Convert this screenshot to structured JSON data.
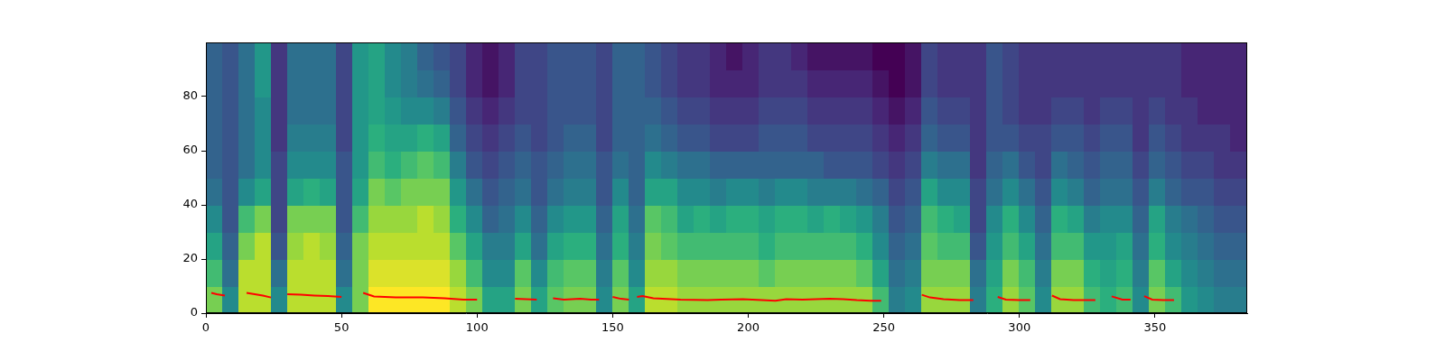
{
  "chart_data": {
    "type": "heatmap",
    "xlim": [
      0,
      384
    ],
    "ylim": [
      0,
      100
    ],
    "xticks": [
      0,
      50,
      100,
      150,
      200,
      250,
      300,
      350
    ],
    "yticks": [
      0,
      20,
      40,
      60,
      80
    ],
    "grid": false,
    "heatmap": {
      "x_edges": [
        0,
        6,
        12,
        18,
        24,
        30,
        36,
        42,
        48,
        54,
        60,
        66,
        72,
        78,
        84,
        90,
        96,
        102,
        108,
        114,
        120,
        126,
        132,
        138,
        144,
        150,
        156,
        162,
        168,
        174,
        180,
        186,
        192,
        198,
        204,
        210,
        216,
        222,
        228,
        234,
        240,
        246,
        252,
        258,
        264,
        270,
        276,
        282,
        288,
        294,
        300,
        306,
        312,
        318,
        324,
        330,
        336,
        342,
        348,
        354,
        360,
        366,
        372,
        378,
        384
      ],
      "y_edges": [
        0,
        10,
        20,
        30,
        40,
        50,
        60,
        70,
        80,
        90,
        100
      ],
      "cells": [
        [
          8,
          7,
          6,
          5,
          4,
          3.5,
          3.5,
          3.5,
          3.5,
          3.5
        ],
        [
          5,
          4,
          3.5,
          3,
          3,
          3,
          3,
          3,
          3,
          3
        ],
        [
          9,
          9,
          8,
          7,
          5,
          4,
          4,
          4,
          4,
          4
        ],
        [
          9,
          9,
          9,
          8,
          6,
          5,
          5,
          5,
          5.5,
          5.5
        ],
        [
          5,
          4,
          3,
          2.5,
          2.5,
          2.5,
          2,
          2,
          2,
          2
        ],
        [
          9,
          9,
          8.5,
          8,
          6,
          5,
          4.5,
          4,
          4,
          4
        ],
        [
          9,
          9,
          9,
          8,
          6.5,
          5,
          4.5,
          4,
          4,
          4
        ],
        [
          9,
          9,
          8.5,
          8,
          6,
          5,
          4.5,
          4,
          4,
          4
        ],
        [
          5,
          4,
          3.5,
          3,
          3,
          3,
          2.5,
          2.5,
          2.5,
          2.5
        ],
        [
          8,
          8,
          8,
          7,
          6,
          5.5,
          5.5,
          5.5,
          5.5,
          5.5
        ],
        [
          10,
          9.5,
          9,
          8.5,
          8,
          7,
          6.5,
          6,
          6,
          6
        ],
        [
          10,
          9.5,
          9,
          8.5,
          7.5,
          6.5,
          6,
          5.5,
          5,
          5
        ],
        [
          10,
          9.5,
          9,
          8.5,
          8,
          7,
          6,
          5,
          4.5,
          4.5
        ],
        [
          10,
          9.5,
          9,
          9,
          8,
          7.5,
          6.5,
          5,
          4,
          3.5
        ],
        [
          10,
          9.5,
          9,
          8.5,
          8,
          7,
          6,
          4.5,
          3.5,
          3
        ],
        [
          9,
          8.5,
          7.5,
          6.5,
          5.5,
          4.5,
          3.5,
          3,
          2.5,
          2.5
        ],
        [
          8,
          7,
          6,
          5,
          4,
          3,
          2.5,
          2,
          1.5,
          1.5
        ],
        [
          6,
          5,
          4.5,
          3.5,
          3,
          2.5,
          2,
          1.5,
          1,
          1
        ],
        [
          6,
          5,
          4.5,
          4,
          3.5,
          3,
          2.5,
          2,
          1.5,
          1.5
        ],
        [
          8,
          7.5,
          6,
          5,
          4,
          3.5,
          3,
          2.5,
          2.5,
          2.5
        ],
        [
          6,
          5,
          4,
          3.5,
          3,
          3,
          2.5,
          2.5,
          2.5,
          2.5
        ],
        [
          7.5,
          7,
          6,
          5,
          4,
          3.5,
          3,
          3,
          3,
          3
        ],
        [
          8,
          7.5,
          6.5,
          5.5,
          4.5,
          4,
          3.5,
          3,
          3,
          3
        ],
        [
          8,
          7.5,
          6.5,
          5.5,
          4.5,
          4,
          3.5,
          3,
          3,
          3
        ],
        [
          5,
          4.5,
          4,
          3.5,
          3,
          3,
          2.5,
          2.5,
          2.5,
          2.5
        ],
        [
          8,
          7.5,
          6.5,
          6,
          5,
          4,
          3.5,
          3.5,
          3.5,
          3.5
        ],
        [
          6,
          5,
          4.5,
          4,
          3.5,
          3.5,
          3.5,
          3.5,
          3.5,
          3.5
        ],
        [
          9,
          8.5,
          8,
          7.5,
          6,
          5,
          4,
          3.5,
          3,
          3
        ],
        [
          9,
          8.5,
          7.5,
          7,
          6,
          4.5,
          3.5,
          3,
          2.5,
          2.5
        ],
        [
          8.5,
          8,
          7,
          6,
          5,
          4,
          3,
          2.5,
          2,
          2
        ],
        [
          8.5,
          8,
          7,
          6.5,
          5,
          4,
          3,
          2.5,
          2,
          2
        ],
        [
          8.5,
          8,
          7,
          6,
          4.5,
          3.5,
          2.5,
          2,
          1.5,
          1.5
        ],
        [
          8.5,
          8,
          7,
          6.5,
          5,
          3.5,
          2.5,
          2,
          1.5,
          1
        ],
        [
          8.5,
          8,
          7,
          6.5,
          5,
          3.5,
          2.5,
          2,
          1.5,
          1.5
        ],
        [
          8.5,
          7.5,
          6.5,
          6,
          4.5,
          3.5,
          3,
          2.5,
          2,
          2
        ],
        [
          8.5,
          8,
          7,
          6.5,
          5,
          3.5,
          3,
          2.5,
          2,
          2
        ],
        [
          8.5,
          8,
          7,
          6.5,
          5,
          3.5,
          3,
          2.5,
          2,
          1.5
        ],
        [
          8.5,
          8,
          7,
          6,
          4.5,
          3.5,
          2.5,
          2,
          1.5,
          1
        ],
        [
          8.5,
          8,
          7,
          6.5,
          4.5,
          3,
          2.5,
          2,
          1.5,
          1
        ],
        [
          8.5,
          8,
          7,
          6,
          4.5,
          3,
          2.5,
          2,
          1.5,
          1
        ],
        [
          8.5,
          7.5,
          6.5,
          5.5,
          4,
          3,
          2.5,
          2,
          1.5,
          1
        ],
        [
          7,
          6,
          5,
          4.5,
          3.5,
          2.5,
          2,
          1.5,
          1,
          0.5
        ],
        [
          4.5,
          4,
          3.5,
          3,
          2.5,
          2,
          1.5,
          1,
          0.5,
          0.5
        ],
        [
          5,
          4.5,
          4,
          3.5,
          3,
          2.5,
          2,
          1.5,
          1,
          1
        ],
        [
          8.5,
          8,
          7.5,
          7,
          6,
          4.5,
          3.5,
          3,
          2.5,
          2.5
        ],
        [
          8.5,
          8,
          7,
          6.5,
          5,
          4,
          3,
          2.5,
          2,
          2
        ],
        [
          8.5,
          8,
          7,
          6,
          5,
          4,
          3,
          2.5,
          2,
          2
        ],
        [
          4.5,
          4,
          3,
          2.5,
          2.5,
          2,
          2,
          2,
          2,
          2
        ],
        [
          6.5,
          6,
          5.5,
          5,
          4,
          3.5,
          3,
          3,
          3,
          3
        ],
        [
          8.5,
          8,
          7,
          6.5,
          5,
          4,
          3,
          2.5,
          2.5,
          2.5
        ],
        [
          7.5,
          7,
          6,
          5,
          4,
          3,
          2.5,
          2,
          2,
          2
        ],
        [
          5,
          4.5,
          4,
          3.5,
          3,
          2.5,
          2.5,
          2,
          2,
          2
        ],
        [
          8.5,
          8,
          7,
          6.5,
          5,
          4,
          3,
          2.5,
          2,
          2
        ],
        [
          8.5,
          8,
          7,
          6,
          4.5,
          3.5,
          3,
          2.5,
          2,
          2
        ],
        [
          7,
          6.5,
          5.5,
          4.5,
          3.5,
          3,
          2.5,
          2,
          2,
          2
        ],
        [
          6.5,
          6,
          5.5,
          5,
          4,
          3.5,
          3,
          2.5,
          2,
          2
        ],
        [
          7,
          6.5,
          6,
          5,
          4,
          3.5,
          3,
          2.5,
          2,
          2
        ],
        [
          5,
          4.5,
          4,
          3.5,
          3,
          2.5,
          2,
          2,
          2,
          2
        ],
        [
          8,
          7.5,
          6.5,
          6,
          4.5,
          3.5,
          3,
          2.5,
          2,
          2
        ],
        [
          7,
          6,
          5,
          4.5,
          3.5,
          3,
          2.5,
          2,
          2,
          2
        ],
        [
          5.5,
          5,
          4.5,
          4,
          3,
          2.5,
          2,
          2,
          1.5,
          1.5
        ],
        [
          5,
          4.5,
          4,
          3.5,
          3,
          2.5,
          2,
          1.5,
          1.5,
          1.5
        ],
        [
          4.5,
          4,
          3.5,
          3,
          2.5,
          2,
          2,
          1.5,
          1.5,
          1.5
        ],
        [
          4.5,
          4,
          3.5,
          3,
          2.5,
          2,
          1.5,
          1.5,
          1.5,
          1.5
        ]
      ]
    },
    "series": [
      {
        "type": "line",
        "color": "#ff0000",
        "x": [
          2,
          4,
          7,
          10,
          15,
          18,
          21,
          24,
          27,
          30,
          35,
          40,
          45,
          50,
          54,
          58,
          62,
          70,
          80,
          88,
          95,
          100,
          107,
          114,
          118,
          122,
          125,
          128,
          132,
          138,
          142,
          145,
          147,
          150,
          153,
          156,
          157,
          159,
          161,
          165,
          175,
          185,
          190,
          198,
          205,
          210,
          214,
          220,
          225,
          230,
          235,
          240,
          245,
          249,
          256,
          264,
          267,
          272,
          278,
          283,
          287,
          292,
          295,
          300,
          304,
          308,
          312,
          315,
          320,
          328,
          331,
          334,
          338,
          341,
          343,
          346,
          349,
          353,
          357
        ],
        "values": [
          7.5,
          7,
          6.5,
          null,
          7.5,
          7,
          6.5,
          5.8,
          null,
          7,
          6.8,
          6.5,
          6.3,
          6.0,
          null,
          7.5,
          6.2,
          5.8,
          5.8,
          5.5,
          5.0,
          5.0,
          null,
          5.3,
          5.2,
          5.0,
          null,
          5.5,
          5.0,
          5.3,
          5.0,
          5.0,
          null,
          6.0,
          5.3,
          5.0,
          null,
          6.0,
          6.3,
          5.5,
          5.0,
          4.8,
          5.0,
          5.2,
          4.8,
          4.6,
          5.2,
          5.0,
          5.2,
          5.3,
          5.2,
          4.8,
          4.6,
          4.6,
          null,
          6.8,
          5.8,
          5.2,
          4.8,
          4.8,
          null,
          6.0,
          5.0,
          4.8,
          4.8,
          null,
          6.5,
          5.2,
          4.8,
          4.8,
          null,
          6.2,
          5.0,
          5.0,
          null,
          6.3,
          5.0,
          4.8,
          4.8
        ]
      }
    ]
  }
}
